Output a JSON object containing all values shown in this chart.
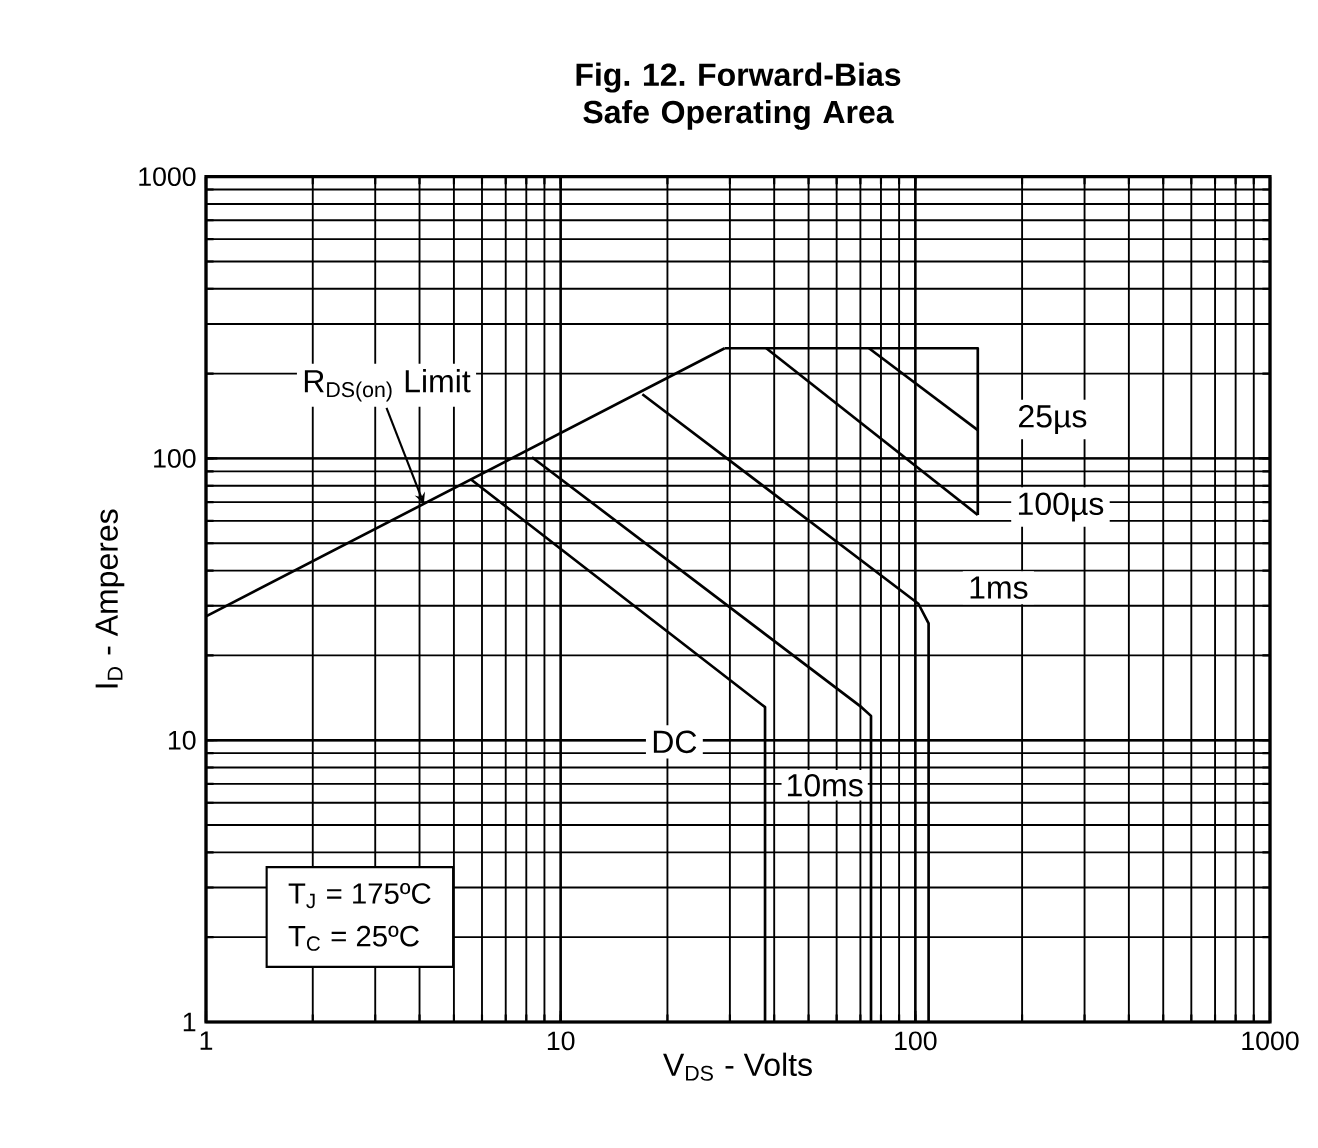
{
  "chart_data": {
    "type": "line",
    "title": "Fig. 12. Forward-Bias Safe Operating Area",
    "xlabel": "V$_{DS}$ - Volts",
    "ylabel": "I$_{D}$ - Amperes",
    "log": "xy",
    "grid": true,
    "xlim": [
      1,
      1000
    ],
    "ylim": [
      1,
      1000
    ],
    "xticks": [
      1,
      10,
      100,
      1000
    ],
    "yticks": [
      1,
      10,
      100,
      1000
    ],
    "series": [
      {
        "name": "R$_{DS(on)}$ Limit",
        "color": "#000000",
        "x": [
          1,
          29
        ],
        "values": [
          27.5,
          246
        ]
      },
      {
        "color": "#000000",
        "x": [
          29,
          150,
          150
        ],
        "values": [
          246,
          246,
          63
        ]
      },
      {
        "name": "25µs",
        "color": "#000000",
        "x": [
          74,
          150
        ],
        "values": [
          246,
          126
        ]
      },
      {
        "name": "100µs",
        "color": "#000000",
        "x": [
          38,
          150
        ],
        "values": [
          246,
          63
        ]
      },
      {
        "name": "1ms",
        "color": "#000000",
        "x": [
          17,
          102,
          109,
          109
        ],
        "values": [
          169,
          30.5,
          26,
          1
        ]
      },
      {
        "name": "10ms",
        "color": "#000000",
        "x": [
          8.3,
          70.5,
          75,
          75
        ],
        "values": [
          101,
          13.1,
          12.2,
          1
        ]
      },
      {
        "name": "DC",
        "color": "#000000",
        "x": [
          5.6,
          37.7,
          37.7
        ],
        "values": [
          84,
          13.1,
          1
        ]
      }
    ],
    "annotations": [
      "T$_{J}$ = 175ºC",
      "T$_{C}$ = 25ºC"
    ]
  }
}
